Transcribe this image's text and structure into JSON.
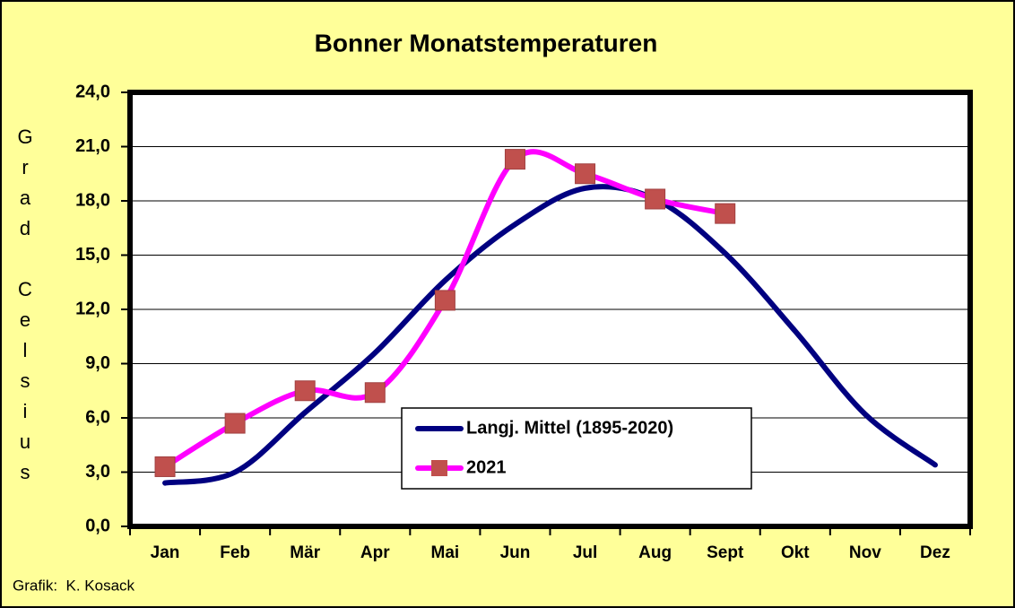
{
  "chart_data": {
    "type": "line",
    "title": "Bonner Monatstemperaturen",
    "y_label": "Grad Celsius",
    "footer": "Grafik:  K. Kosack",
    "categories": [
      "Jan",
      "Feb",
      "Mär",
      "Apr",
      "Mai",
      "Jun",
      "Jul",
      "Aug",
      "Sept",
      "Okt",
      "Nov",
      "Dez"
    ],
    "series": [
      {
        "name": "Langj. Mittel (1895-2020)",
        "color": "#000080",
        "values": [
          2.4,
          3.0,
          6.3,
          9.6,
          13.6,
          16.7,
          18.7,
          18.1,
          15.1,
          10.8,
          6.2,
          3.4
        ]
      },
      {
        "name": "2021",
        "color": "#ff00ff",
        "marker_color": "#c0504d",
        "values": [
          3.3,
          5.7,
          7.5,
          7.4,
          12.5,
          20.3,
          19.5,
          18.1,
          17.3,
          null,
          null,
          null
        ]
      }
    ],
    "ylim": [
      0,
      24
    ],
    "yticks": [
      {
        "value": 0,
        "label": "0,0"
      },
      {
        "value": 3,
        "label": "3,0"
      },
      {
        "value": 6,
        "label": "6,0"
      },
      {
        "value": 9,
        "label": "9,0"
      },
      {
        "value": 12,
        "label": "12,0"
      },
      {
        "value": 15,
        "label": "15,0"
      },
      {
        "value": 18,
        "label": "18,0"
      },
      {
        "value": 21,
        "label": "21,0"
      },
      {
        "value": 24,
        "label": "24,0"
      }
    ],
    "grid": true
  }
}
